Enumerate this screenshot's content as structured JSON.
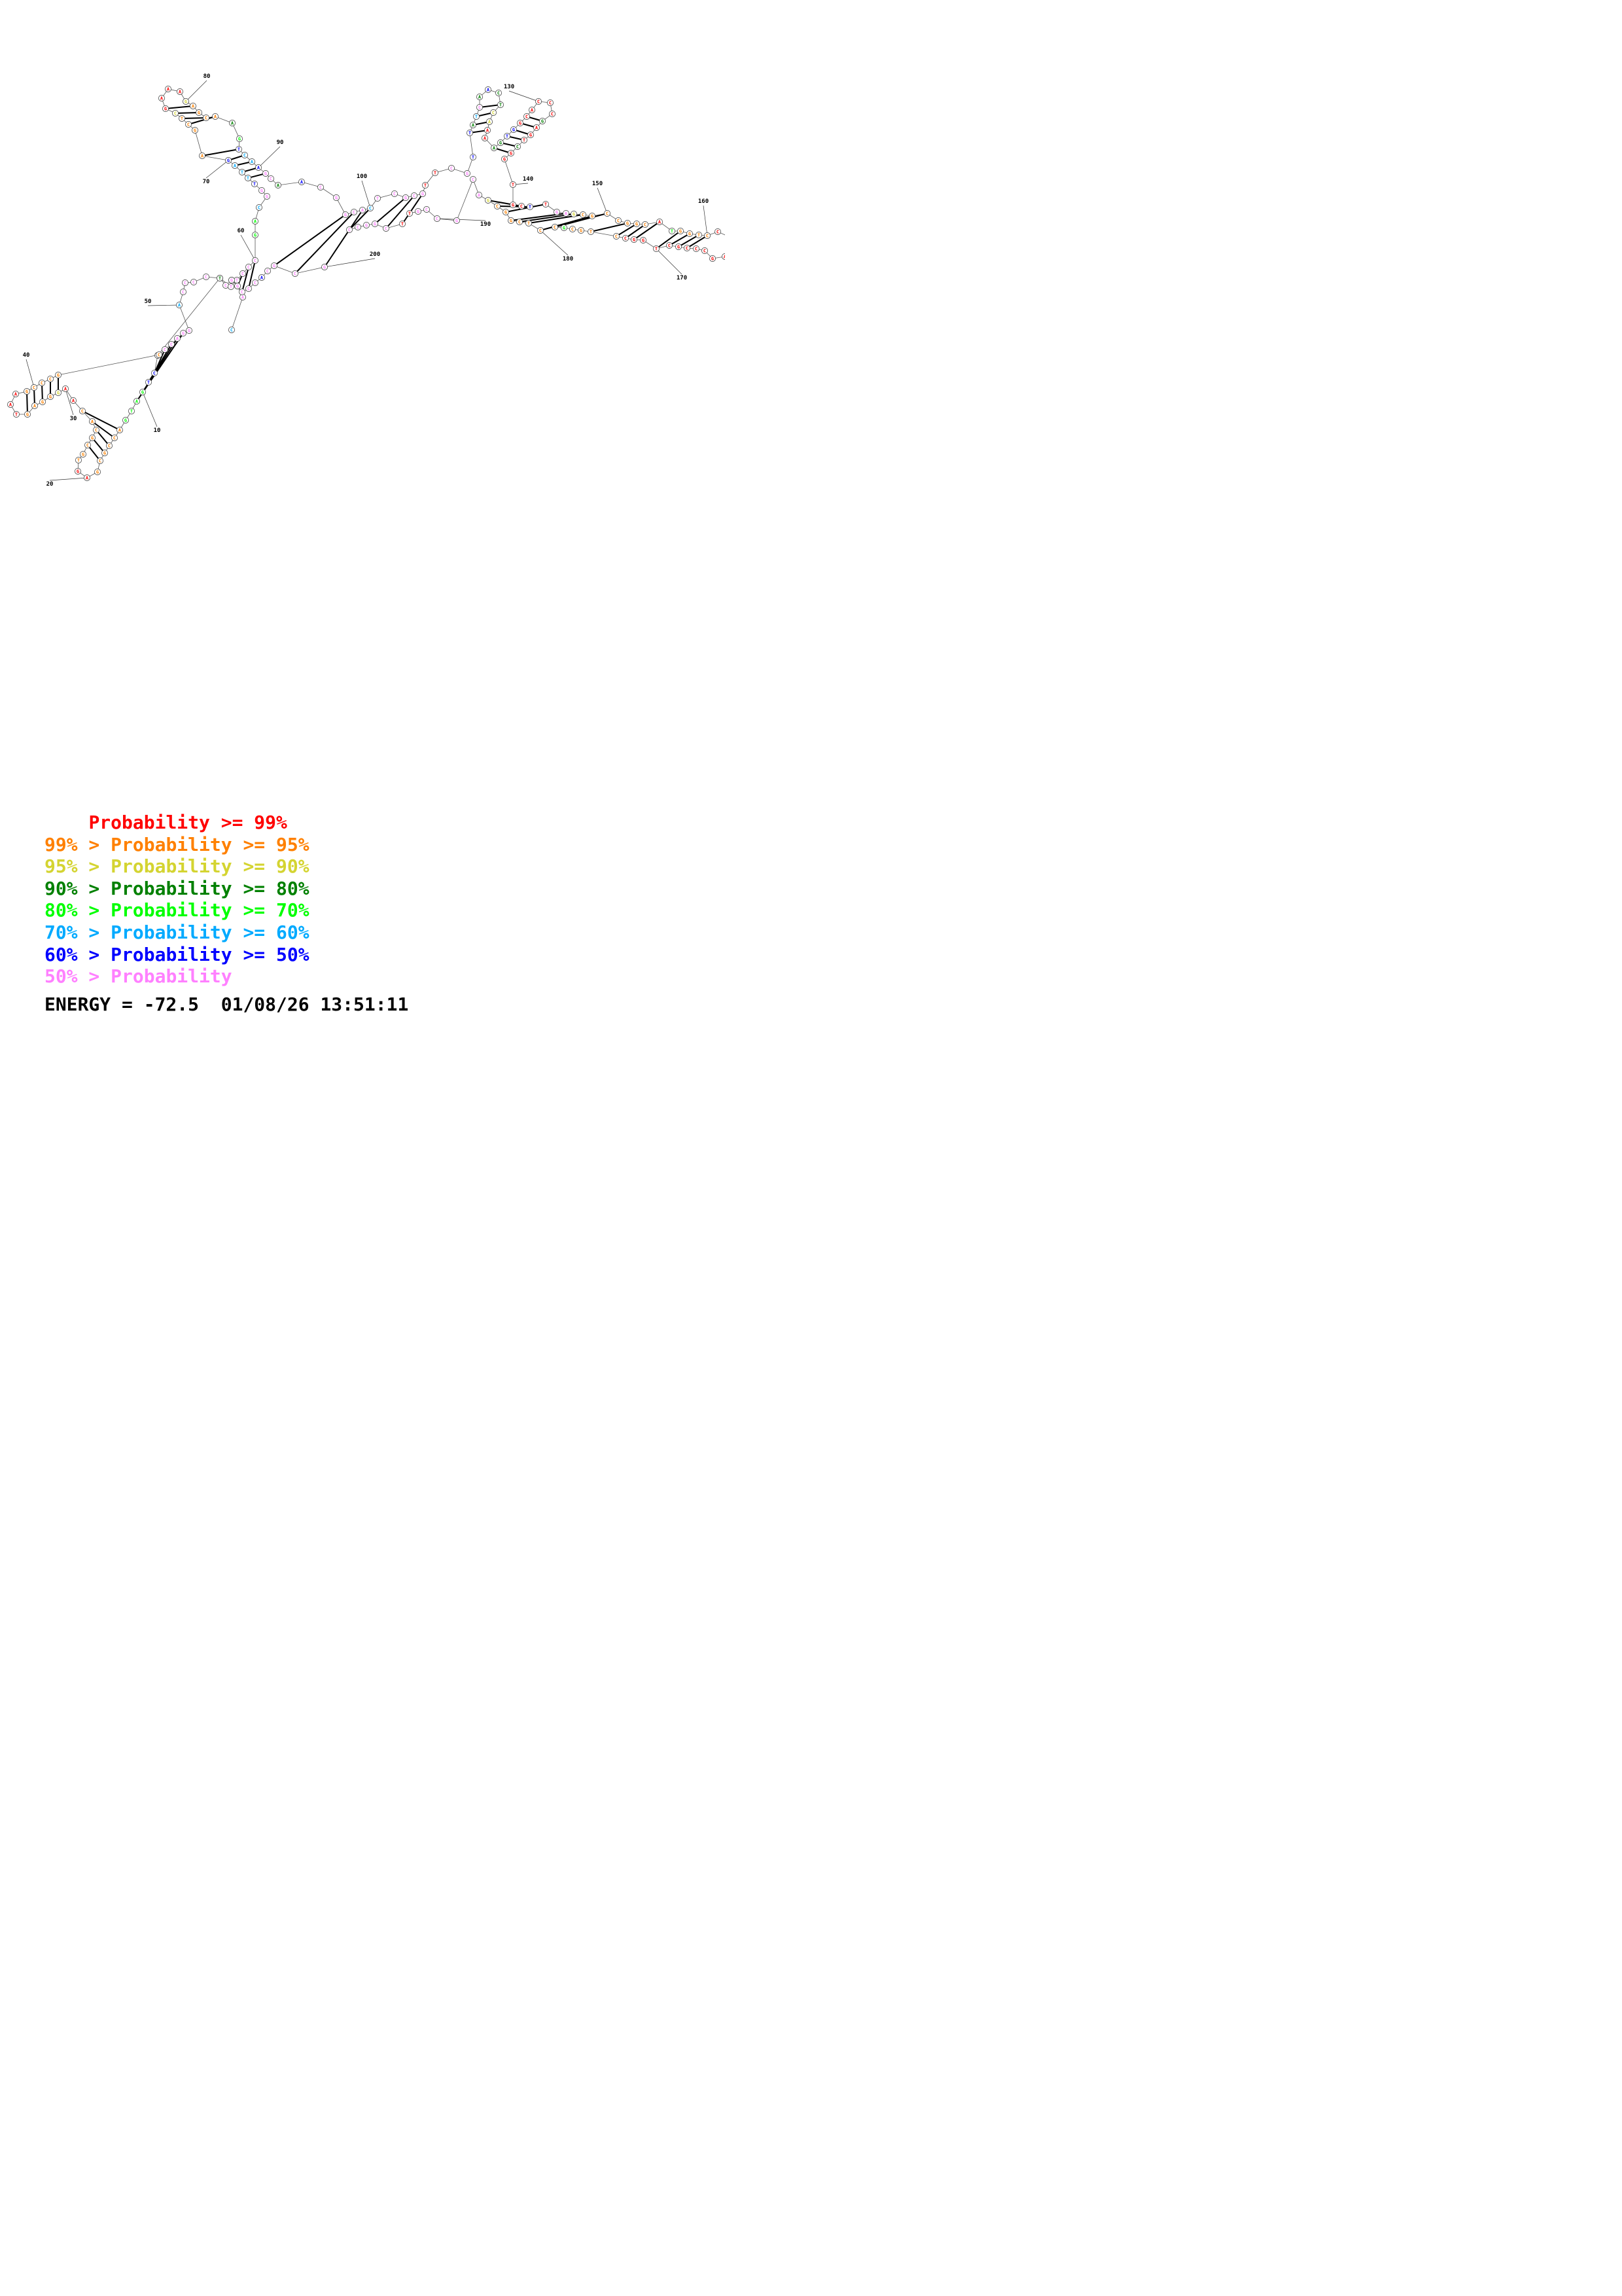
{
  "legend": [
    {
      "range": "    ",
      "label": "Probability >= 99%",
      "color": "#ff0000"
    },
    {
      "range": "99% > ",
      "label": "Probability >= 95%",
      "color": "#ff8000"
    },
    {
      "range": "95% > ",
      "label": "Probability >= 90%",
      "color": "#d4d431"
    },
    {
      "range": "90% > ",
      "label": "Probability >= 80%",
      "color": "#008000"
    },
    {
      "range": "80% > ",
      "label": "Probability >= 70%",
      "color": "#00ff00"
    },
    {
      "range": "70% > ",
      "label": "Probability >= 60%",
      "color": "#00aaff"
    },
    {
      "range": "60% > ",
      "label": "Probability >= 50%",
      "color": "#0000ff"
    },
    {
      "range": "50% > ",
      "label": "Probability",
      "color": "#ff80ff"
    }
  ],
  "footer": {
    "energy": "ENERGY = -72.5",
    "timestamp": "01/08/26 13:51:11"
  },
  "position_labels": [
    "10",
    "20",
    "30",
    "40",
    "50",
    "60",
    "70",
    "80",
    "90",
    "100",
    "130",
    "140",
    "150",
    "160",
    "170",
    "180",
    "190",
    "200",
    "210"
  ],
  "nucleotide_color_key": {
    "r": "#ff0000",
    "o": "#ff8000",
    "y": "#d4d431",
    "g": "#008000",
    "l": "#00ff00",
    "c": "#00aaff",
    "b": "#0000ff",
    "p": "#ff80ff"
  },
  "nucleotides": [
    {
      "base": "C",
      "prob": "c"
    },
    {
      "base": "A",
      "prob": "p"
    },
    {
      "base": "C",
      "prob": "p"
    },
    {
      "base": "C",
      "prob": "p"
    },
    {
      "base": "C",
      "prob": "p"
    },
    {
      "base": "C",
      "prob": "p"
    },
    {
      "base": "C",
      "prob": "o"
    },
    {
      "base": "C",
      "prob": "b"
    },
    {
      "base": "T",
      "prob": "b"
    },
    {
      "base": "G",
      "prob": "l"
    },
    {
      "base": "A",
      "prob": "l"
    },
    {
      "base": "T",
      "prob": "l"
    },
    {
      "base": "G",
      "prob": "l"
    },
    {
      "base": "A",
      "prob": "o"
    },
    {
      "base": "C",
      "prob": "o"
    },
    {
      "base": "C",
      "prob": "o"
    },
    {
      "base": "G",
      "prob": "o"
    },
    {
      "base": "C",
      "prob": "o"
    },
    {
      "base": "G",
      "prob": "o"
    },
    {
      "base": "A",
      "prob": "r"
    },
    {
      "base": "G",
      "prob": "r"
    },
    {
      "base": "T",
      "prob": "o"
    },
    {
      "base": "G",
      "prob": "o"
    },
    {
      "base": "C",
      "prob": "o"
    },
    {
      "base": "G",
      "prob": "o"
    },
    {
      "base": "C",
      "prob": "o"
    },
    {
      "base": "A",
      "prob": "o"
    },
    {
      "base": "C",
      "prob": "o"
    },
    {
      "base": "A",
      "prob": "r"
    },
    {
      "base": "A",
      "prob": "r"
    },
    {
      "base": "G",
      "prob": "y"
    },
    {
      "base": "G",
      "prob": "o"
    },
    {
      "base": "G",
      "prob": "o"
    },
    {
      "base": "A",
      "prob": "o"
    },
    {
      "base": "G",
      "prob": "o"
    },
    {
      "base": "T",
      "prob": "r"
    },
    {
      "base": "A",
      "prob": "r"
    },
    {
      "base": "A",
      "prob": "r"
    },
    {
      "base": "G",
      "prob": "o"
    },
    {
      "base": "C",
      "prob": "o"
    },
    {
      "base": "C",
      "prob": "o"
    },
    {
      "base": "C",
      "prob": "o"
    },
    {
      "base": "G",
      "prob": "o"
    },
    {
      "base": "C",
      "prob": "o"
    },
    {
      "base": "C",
      "prob": "p"
    },
    {
      "base": "C",
      "prob": "p"
    },
    {
      "base": "A",
      "prob": "p"
    },
    {
      "base": "G",
      "prob": "p"
    },
    {
      "base": "G",
      "prob": "p"
    },
    {
      "base": "A",
      "prob": "c"
    },
    {
      "base": "C",
      "prob": "p"
    },
    {
      "base": "C",
      "prob": "p"
    },
    {
      "base": "C",
      "prob": "p"
    },
    {
      "base": "C",
      "prob": "p"
    },
    {
      "base": "T",
      "prob": "g"
    },
    {
      "base": "T",
      "prob": "p"
    },
    {
      "base": "T",
      "prob": "p"
    },
    {
      "base": "C",
      "prob": "p"
    },
    {
      "base": "C",
      "prob": "p"
    },
    {
      "base": "C",
      "prob": "p"
    },
    {
      "base": "G",
      "prob": "l"
    },
    {
      "base": "A",
      "prob": "l"
    },
    {
      "base": "C",
      "prob": "c"
    },
    {
      "base": "G",
      "prob": "p"
    },
    {
      "base": "G",
      "prob": "p"
    },
    {
      "base": "T",
      "prob": "b"
    },
    {
      "base": "T",
      "prob": "c"
    },
    {
      "base": "T",
      "prob": "c"
    },
    {
      "base": "A",
      "prob": "c"
    },
    {
      "base": "G",
      "prob": "b"
    },
    {
      "base": "A",
      "prob": "o"
    },
    {
      "base": "G",
      "prob": "o"
    },
    {
      "base": "C",
      "prob": "o"
    },
    {
      "base": "T",
      "prob": "o"
    },
    {
      "base": "C",
      "prob": "y"
    },
    {
      "base": "G",
      "prob": "r"
    },
    {
      "base": "A",
      "prob": "r"
    },
    {
      "base": "A",
      "prob": "r"
    },
    {
      "base": "A",
      "prob": "r"
    },
    {
      "base": "G",
      "prob": "y"
    },
    {
      "base": "A",
      "prob": "o"
    },
    {
      "base": "G",
      "prob": "o"
    },
    {
      "base": "C",
      "prob": "o"
    },
    {
      "base": "A",
      "prob": "o"
    },
    {
      "base": "A",
      "prob": "g"
    },
    {
      "base": "G",
      "prob": "l"
    },
    {
      "base": "T",
      "prob": "b"
    },
    {
      "base": "C",
      "prob": "c"
    },
    {
      "base": "A",
      "prob": "c"
    },
    {
      "base": "A",
      "prob": "b"
    },
    {
      "base": "G",
      "prob": "p"
    },
    {
      "base": "C",
      "prob": "p"
    },
    {
      "base": "A",
      "prob": "g"
    },
    {
      "base": "A",
      "prob": "b"
    },
    {
      "base": "C",
      "prob": "p"
    },
    {
      "base": "G",
      "prob": "p"
    },
    {
      "base": "G",
      "prob": "p"
    },
    {
      "base": "C",
      "prob": "p"
    },
    {
      "base": "A",
      "prob": "p"
    },
    {
      "base": "C",
      "prob": "c"
    },
    {
      "base": "T",
      "prob": "p"
    },
    {
      "base": "C",
      "prob": "p"
    },
    {
      "base": "G",
      "prob": "p"
    },
    {
      "base": "C",
      "prob": "p"
    },
    {
      "base": "G",
      "prob": "p"
    },
    {
      "base": "T",
      "prob": "r"
    },
    {
      "base": "T",
      "prob": "r"
    },
    {
      "base": "C",
      "prob": "p"
    },
    {
      "base": "G",
      "prob": "p"
    },
    {
      "base": "T",
      "prob": "b"
    },
    {
      "base": "T",
      "prob": "b"
    },
    {
      "base": "A",
      "prob": "g"
    },
    {
      "base": "T",
      "prob": "c"
    },
    {
      "base": "C",
      "prob": "p"
    },
    {
      "base": "A",
      "prob": "g"
    },
    {
      "base": "A",
      "prob": "b"
    },
    {
      "base": "C",
      "prob": "g"
    },
    {
      "base": "T",
      "prob": "g"
    },
    {
      "base": "C",
      "prob": "y"
    },
    {
      "base": "A",
      "prob": "y"
    },
    {
      "base": "A",
      "prob": "r"
    },
    {
      "base": "A",
      "prob": "r"
    },
    {
      "base": "A",
      "prob": "g"
    },
    {
      "base": "G",
      "prob": "g"
    },
    {
      "base": "T",
      "prob": "b"
    },
    {
      "base": "G",
      "prob": "b"
    },
    {
      "base": "G",
      "prob": "r"
    },
    {
      "base": "C",
      "prob": "r"
    },
    {
      "base": "A",
      "prob": "r"
    },
    {
      "base": "C",
      "prob": "r"
    },
    {
      "base": "C",
      "prob": "r"
    },
    {
      "base": "C",
      "prob": "r"
    },
    {
      "base": "G",
      "prob": "g"
    },
    {
      "base": "A",
      "prob": "r"
    },
    {
      "base": "G",
      "prob": "r"
    },
    {
      "base": "T",
      "prob": "r"
    },
    {
      "base": "C",
      "prob": "g"
    },
    {
      "base": "G",
      "prob": "r"
    },
    {
      "base": "G",
      "prob": "r"
    },
    {
      "base": "T",
      "prob": "r"
    },
    {
      "base": "G",
      "prob": "r"
    },
    {
      "base": "C",
      "prob": "r"
    },
    {
      "base": "T",
      "prob": "b"
    },
    {
      "base": "T",
      "prob": "r"
    },
    {
      "base": "G",
      "prob": "p"
    },
    {
      "base": "A",
      "prob": "p"
    },
    {
      "base": "G",
      "prob": "y"
    },
    {
      "base": "C",
      "prob": "o"
    },
    {
      "base": "G",
      "prob": "o"
    },
    {
      "base": "C",
      "prob": "o"
    },
    {
      "base": "C",
      "prob": "o"
    },
    {
      "base": "G",
      "prob": "o"
    },
    {
      "base": "G",
      "prob": "o"
    },
    {
      "base": "C",
      "prob": "o"
    },
    {
      "base": "A",
      "prob": "r"
    },
    {
      "base": "T",
      "prob": "l"
    },
    {
      "base": "G",
      "prob": "o"
    },
    {
      "base": "G",
      "prob": "o"
    },
    {
      "base": "T",
      "prob": "o"
    },
    {
      "base": "C",
      "prob": "o"
    },
    {
      "base": "C",
      "prob": "r"
    },
    {
      "base": "C",
      "prob": "r"
    },
    {
      "base": "A",
      "prob": "r"
    },
    {
      "base": "G",
      "prob": "r"
    },
    {
      "base": "C",
      "prob": "r"
    },
    {
      "base": "C",
      "prob": "r"
    },
    {
      "base": "C",
      "prob": "r"
    },
    {
      "base": "G",
      "prob": "r"
    },
    {
      "base": "C",
      "prob": "r"
    },
    {
      "base": "T",
      "prob": "r"
    },
    {
      "base": "G",
      "prob": "r"
    },
    {
      "base": "G",
      "prob": "r"
    },
    {
      "base": "C",
      "prob": "r"
    },
    {
      "base": "C",
      "prob": "o"
    },
    {
      "base": "T",
      "prob": "o"
    },
    {
      "base": "G",
      "prob": "o"
    },
    {
      "base": "C",
      "prob": "o"
    },
    {
      "base": "G",
      "prob": "l"
    },
    {
      "base": "C",
      "prob": "o"
    },
    {
      "base": "C",
      "prob": "o"
    },
    {
      "base": "T",
      "prob": "o"
    },
    {
      "base": "C",
      "prob": "o"
    },
    {
      "base": "G",
      "prob": "o"
    },
    {
      "base": "G",
      "prob": "o"
    },
    {
      "base": "C",
      "prob": "o"
    },
    {
      "base": "G",
      "prob": "y"
    },
    {
      "base": "A",
      "prob": "p"
    },
    {
      "base": "C",
      "prob": "p"
    },
    {
      "base": "G",
      "prob": "p"
    },
    {
      "base": "C",
      "prob": "p"
    },
    {
      "base": "C",
      "prob": "p"
    },
    {
      "base": "G",
      "prob": "p"
    },
    {
      "base": "T",
      "prob": "r"
    },
    {
      "base": "T",
      "prob": "r"
    },
    {
      "base": "C",
      "prob": "p"
    },
    {
      "base": "G",
      "prob": "p"
    },
    {
      "base": "G",
      "prob": "p"
    },
    {
      "base": "C",
      "prob": "p"
    },
    {
      "base": "C",
      "prob": "p"
    },
    {
      "base": "G",
      "prob": "p"
    },
    {
      "base": "C",
      "prob": "p"
    },
    {
      "base": "G",
      "prob": "p"
    },
    {
      "base": "C",
      "prob": "p"
    },
    {
      "base": "A",
      "prob": "b"
    },
    {
      "base": "C",
      "prob": "p"
    },
    {
      "base": "C",
      "prob": "p"
    },
    {
      "base": "C",
      "prob": "p"
    },
    {
      "base": "G",
      "prob": "p"
    },
    {
      "base": "G",
      "prob": "p"
    },
    {
      "base": "G",
      "prob": "p"
    },
    {
      "base": "G",
      "prob": "p"
    },
    {
      "base": "C",
      "prob": "p"
    },
    {
      "base": "A",
      "prob": "p"
    }
  ]
}
